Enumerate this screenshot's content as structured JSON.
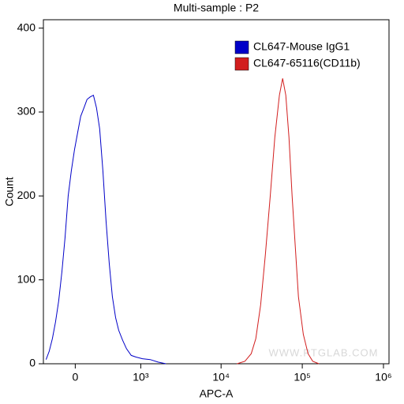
{
  "chart_data": {
    "type": "line",
    "title": "Multi-sample : P2",
    "x_label": "APC-A",
    "y_label": "Count",
    "xscale": "biexponential",
    "xlim": [
      -330,
      1170000
    ],
    "ylim": [
      0,
      410
    ],
    "xticks": [
      0,
      {
        "value": 1000,
        "label": "10³"
      },
      {
        "value": 10000,
        "label": "10⁴"
      },
      {
        "value": 100000,
        "label": "10⁵"
      },
      {
        "value": 1000000,
        "label": "10⁶"
      }
    ],
    "yticks": [
      0,
      100,
      200,
      300,
      400
    ],
    "legend": "upper right",
    "watermark": "WWW.PTGLAB.COM",
    "series": [
      {
        "name": "CL647-Mouse IgG1",
        "color": "#0000c8",
        "x": [
          -296,
          -258,
          -222,
          -188,
          -156,
          -124,
          -94,
          -65,
          -36,
          -7,
          21,
          50,
          80,
          109,
          140,
          172,
          205,
          240,
          277,
          316,
          358,
          403,
          451,
          501,
          571,
          647,
          749,
          867,
          1050,
          1322,
          1660,
          2080
        ],
        "values": [
          5,
          15,
          30,
          50,
          75,
          110,
          150,
          200,
          230,
          255,
          275,
          295,
          305,
          315,
          318,
          320,
          305,
          280,
          230,
          170,
          120,
          80,
          55,
          40,
          28,
          18,
          10,
          8,
          6,
          5,
          2,
          0
        ]
      },
      {
        "name": "CL647-65116(CD11b)",
        "color": "#d21e1e",
        "x": [
          15700,
          19650,
          23500,
          26800,
          30700,
          35100,
          40300,
          45900,
          52300,
          57300,
          62700,
          68500,
          74900,
          81900,
          89600,
          103000,
          117800,
          134400,
          160300
        ],
        "values": [
          0,
          3,
          12,
          30,
          70,
          130,
          200,
          270,
          320,
          340,
          320,
          270,
          200,
          140,
          80,
          35,
          12,
          3,
          0
        ]
      }
    ]
  }
}
